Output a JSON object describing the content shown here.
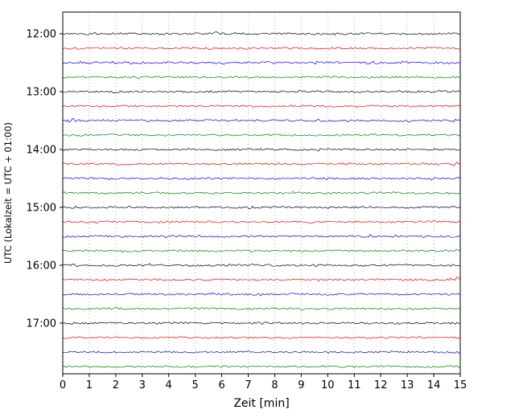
{
  "chart_data": {
    "type": "line",
    "variant": "seismogram-drum-plot",
    "title": "",
    "xlabel": "Zeit [min]",
    "ylabel": "UTC (Lokalzeit = UTC + 01:00)",
    "xlim": [
      0,
      15
    ],
    "x_ticks": [
      0,
      1,
      2,
      3,
      4,
      5,
      6,
      7,
      8,
      9,
      10,
      11,
      12,
      13,
      14,
      15
    ],
    "hour_labels": [
      "12:00",
      "13:00",
      "14:00",
      "15:00",
      "16:00",
      "17:00"
    ],
    "trace_interval_min": 15,
    "traces_per_hour": 4,
    "noise_amp": 1.1,
    "grid": {
      "vertical": true,
      "horizontal": false,
      "style": "dotted",
      "color": "#999999"
    },
    "colors_cycle": [
      "#000000",
      "#ff0000",
      "#0000ff",
      "#008000"
    ],
    "traces": [
      {
        "start": "12:00",
        "color": "#000000",
        "events": [
          {
            "x": 5.8,
            "amp": 1.5
          }
        ]
      },
      {
        "start": "12:15",
        "color": "#ff0000",
        "events": []
      },
      {
        "start": "12:30",
        "color": "#0000ff",
        "events": [
          {
            "x": 2.5,
            "amp": 0.8
          }
        ]
      },
      {
        "start": "12:45",
        "color": "#008000",
        "events": []
      },
      {
        "start": "13:00",
        "color": "#000000",
        "events": [
          {
            "x": 2.0,
            "amp": 0.8
          }
        ]
      },
      {
        "start": "13:15",
        "color": "#ff0000",
        "events": []
      },
      {
        "start": "13:30",
        "color": "#0000ff",
        "events": [
          {
            "x": 0.3,
            "amp": 2.0
          },
          {
            "x": 14.6,
            "amp": 3.0
          }
        ]
      },
      {
        "start": "13:45",
        "color": "#008000",
        "events": []
      },
      {
        "start": "14:00",
        "color": "#000000",
        "events": []
      },
      {
        "start": "14:15",
        "color": "#ff0000",
        "events": [
          {
            "x": 14.9,
            "amp": 2.0
          }
        ]
      },
      {
        "start": "14:30",
        "color": "#0000ff",
        "events": []
      },
      {
        "start": "14:45",
        "color": "#008000",
        "events": []
      },
      {
        "start": "15:00",
        "color": "#000000",
        "events": []
      },
      {
        "start": "15:15",
        "color": "#ff0000",
        "events": []
      },
      {
        "start": "15:30",
        "color": "#0000ff",
        "events": [
          {
            "x": 11.5,
            "amp": 1.8
          }
        ]
      },
      {
        "start": "15:45",
        "color": "#008000",
        "events": []
      },
      {
        "start": "16:00",
        "color": "#000000",
        "events": [
          {
            "x": 9.5,
            "amp": 0.8
          }
        ]
      },
      {
        "start": "16:15",
        "color": "#ff0000",
        "events": [
          {
            "x": 14.8,
            "amp": 2.5
          }
        ]
      },
      {
        "start": "16:30",
        "color": "#0000ff",
        "events": []
      },
      {
        "start": "16:45",
        "color": "#008000",
        "events": []
      },
      {
        "start": "17:00",
        "color": "#000000",
        "events": []
      },
      {
        "start": "17:15",
        "color": "#ff0000",
        "events": []
      },
      {
        "start": "17:30",
        "color": "#0000ff",
        "events": []
      },
      {
        "start": "17:45",
        "color": "#008000",
        "events": []
      }
    ]
  }
}
